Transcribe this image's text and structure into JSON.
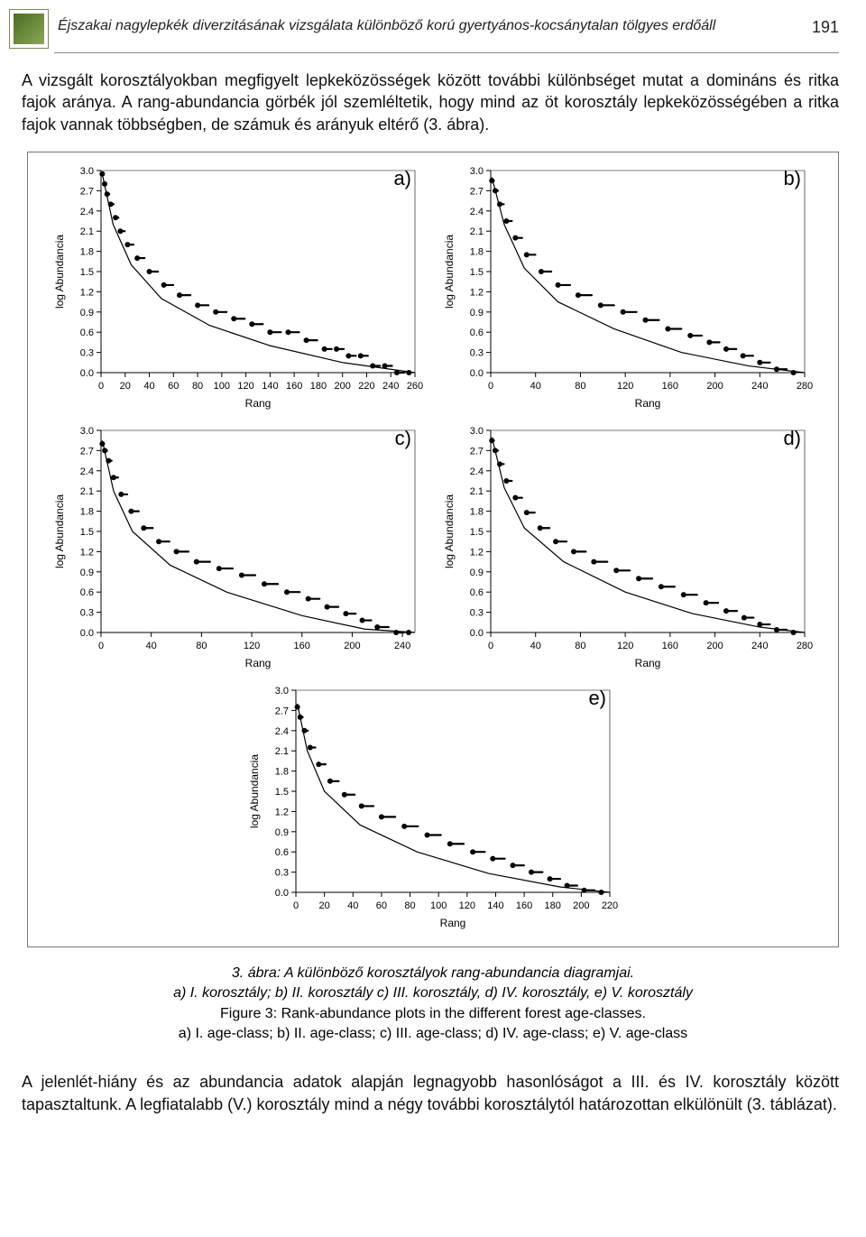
{
  "page_number": "191",
  "running_head": "Éjszakai nagylepkék diverzitásának vizsgálata különböző korú gyertyános-kocsánytalan tölgyes erdőáll",
  "paragraph_top": "A vizsgált korosztályokban megfigyelt lepkeközösségek között további különbséget mutat a domináns és ritka fajok aránya. A rang-abundancia görbék jól szemléltetik, hogy mind az öt korosztály lepkeközösségében a ritka fajok vannak többségben, de számuk és arányuk eltérő (3. ábra).",
  "caption_line1": "3. ábra: A különböző korosztályok rang-abundancia diagramjai.",
  "caption_line2": "a) I. korosztály; b) II. korosztály c) III. korosztály, d) IV. korosztály, e) V. korosztály",
  "caption_line3": "Figure 3: Rank-abundance plots in the different forest age-classes.",
  "caption_line4": "a) I. age-class; b) II. age-class; c) III. age-class; d) IV. age-class; e) V. age-class",
  "paragraph_bottom": "A jelenlét-hiány és az abundancia adatok alapján legnagyobb hasonlóságot a III. és IV. korosztály között tapasztaltunk. A legfiatalabb (V.) korosztály mind a négy további korosztálytól határozottan elkülönült (3. táblázat).",
  "chart_common": {
    "y_label": "log Abundancia",
    "x_label": "Rang",
    "y_ticks": [
      0.0,
      0.3,
      0.6,
      0.9,
      1.2,
      1.5,
      1.8,
      2.1,
      2.4,
      2.7,
      3.0
    ],
    "y_lim": [
      0.0,
      3.0
    ],
    "marker_color": "#000000",
    "line_color": "#000000",
    "background_color": "#ffffff",
    "axis_color": "#000000",
    "tick_font_size": 11,
    "label_font_size": 12,
    "marker_radius": 3,
    "line_width": 1.2
  },
  "panels": {
    "a": {
      "label": "a)",
      "x_ticks": [
        0,
        20,
        40,
        60,
        80,
        100,
        120,
        140,
        160,
        180,
        200,
        220,
        240,
        260
      ],
      "x_lim": [
        0,
        260
      ],
      "curve": [
        [
          1,
          2.95
        ],
        [
          10,
          2.2
        ],
        [
          25,
          1.6
        ],
        [
          50,
          1.1
        ],
        [
          90,
          0.7
        ],
        [
          140,
          0.4
        ],
        [
          200,
          0.15
        ],
        [
          260,
          0.0
        ]
      ],
      "points": [
        [
          1,
          2.95
        ],
        [
          3,
          2.8
        ],
        [
          5,
          2.65
        ],
        [
          8,
          2.5
        ],
        [
          12,
          2.3
        ],
        [
          16,
          2.1
        ],
        [
          22,
          1.9
        ],
        [
          30,
          1.7
        ],
        [
          40,
          1.5
        ],
        [
          52,
          1.3
        ],
        [
          65,
          1.15
        ],
        [
          80,
          1.0
        ],
        [
          95,
          0.9
        ],
        [
          110,
          0.8
        ],
        [
          125,
          0.72
        ],
        [
          140,
          0.6
        ],
        [
          155,
          0.6
        ],
        [
          170,
          0.48
        ],
        [
          185,
          0.35
        ],
        [
          195,
          0.35
        ],
        [
          205,
          0.25
        ],
        [
          215,
          0.25
        ],
        [
          225,
          0.1
        ],
        [
          235,
          0.1
        ],
        [
          245,
          0.0
        ],
        [
          255,
          0.0
        ]
      ]
    },
    "b": {
      "label": "b)",
      "x_ticks": [
        0,
        40,
        80,
        120,
        160,
        200,
        240,
        280
      ],
      "x_lim": [
        0,
        280
      ],
      "curve": [
        [
          1,
          2.9
        ],
        [
          12,
          2.2
        ],
        [
          30,
          1.55
        ],
        [
          60,
          1.05
        ],
        [
          110,
          0.65
        ],
        [
          170,
          0.3
        ],
        [
          230,
          0.1
        ],
        [
          280,
          0.0
        ]
      ],
      "points": [
        [
          1,
          2.85
        ],
        [
          4,
          2.7
        ],
        [
          8,
          2.5
        ],
        [
          14,
          2.25
        ],
        [
          22,
          2.0
        ],
        [
          32,
          1.75
        ],
        [
          45,
          1.5
        ],
        [
          60,
          1.3
        ],
        [
          78,
          1.15
        ],
        [
          98,
          1.0
        ],
        [
          118,
          0.9
        ],
        [
          138,
          0.78
        ],
        [
          158,
          0.65
        ],
        [
          178,
          0.55
        ],
        [
          195,
          0.45
        ],
        [
          210,
          0.35
        ],
        [
          225,
          0.25
        ],
        [
          240,
          0.15
        ],
        [
          255,
          0.05
        ],
        [
          270,
          0.0
        ]
      ]
    },
    "c": {
      "label": "c)",
      "x_ticks": [
        0,
        40,
        80,
        120,
        160,
        200,
        240
      ],
      "x_lim": [
        0,
        250
      ],
      "curve": [
        [
          1,
          2.85
        ],
        [
          10,
          2.1
        ],
        [
          25,
          1.5
        ],
        [
          55,
          1.0
        ],
        [
          100,
          0.6
        ],
        [
          160,
          0.25
        ],
        [
          210,
          0.05
        ],
        [
          250,
          0.0
        ]
      ],
      "points": [
        [
          1,
          2.8
        ],
        [
          3,
          2.7
        ],
        [
          6,
          2.55
        ],
        [
          10,
          2.3
        ],
        [
          16,
          2.05
        ],
        [
          24,
          1.8
        ],
        [
          34,
          1.55
        ],
        [
          46,
          1.35
        ],
        [
          60,
          1.2
        ],
        [
          76,
          1.05
        ],
        [
          94,
          0.95
        ],
        [
          112,
          0.85
        ],
        [
          130,
          0.72
        ],
        [
          148,
          0.6
        ],
        [
          165,
          0.5
        ],
        [
          180,
          0.38
        ],
        [
          195,
          0.28
        ],
        [
          208,
          0.18
        ],
        [
          220,
          0.08
        ],
        [
          235,
          0.0
        ],
        [
          245,
          0.0
        ]
      ]
    },
    "d": {
      "label": "d)",
      "x_ticks": [
        0,
        40,
        80,
        120,
        160,
        200,
        240,
        280
      ],
      "x_lim": [
        0,
        280
      ],
      "curve": [
        [
          1,
          2.9
        ],
        [
          12,
          2.15
        ],
        [
          30,
          1.55
        ],
        [
          65,
          1.05
        ],
        [
          120,
          0.6
        ],
        [
          180,
          0.28
        ],
        [
          240,
          0.08
        ],
        [
          280,
          0.0
        ]
      ],
      "points": [
        [
          1,
          2.85
        ],
        [
          4,
          2.7
        ],
        [
          8,
          2.5
        ],
        [
          14,
          2.25
        ],
        [
          22,
          2.0
        ],
        [
          32,
          1.78
        ],
        [
          44,
          1.55
        ],
        [
          58,
          1.35
        ],
        [
          74,
          1.2
        ],
        [
          92,
          1.05
        ],
        [
          112,
          0.92
        ],
        [
          132,
          0.8
        ],
        [
          152,
          0.68
        ],
        [
          172,
          0.56
        ],
        [
          192,
          0.44
        ],
        [
          210,
          0.32
        ],
        [
          226,
          0.22
        ],
        [
          240,
          0.12
        ],
        [
          255,
          0.04
        ],
        [
          270,
          0.0
        ]
      ]
    },
    "e": {
      "label": "e)",
      "x_ticks": [
        0,
        20,
        40,
        60,
        80,
        100,
        120,
        140,
        160,
        180,
        200,
        220
      ],
      "x_lim": [
        0,
        220
      ],
      "curve": [
        [
          1,
          2.8
        ],
        [
          8,
          2.1
        ],
        [
          20,
          1.5
        ],
        [
          45,
          1.0
        ],
        [
          85,
          0.6
        ],
        [
          135,
          0.28
        ],
        [
          185,
          0.08
        ],
        [
          220,
          0.0
        ]
      ],
      "points": [
        [
          1,
          2.75
        ],
        [
          3,
          2.6
        ],
        [
          6,
          2.4
        ],
        [
          10,
          2.15
        ],
        [
          16,
          1.9
        ],
        [
          24,
          1.65
        ],
        [
          34,
          1.45
        ],
        [
          46,
          1.28
        ],
        [
          60,
          1.12
        ],
        [
          76,
          0.98
        ],
        [
          92,
          0.85
        ],
        [
          108,
          0.72
        ],
        [
          124,
          0.6
        ],
        [
          138,
          0.5
        ],
        [
          152,
          0.4
        ],
        [
          165,
          0.3
        ],
        [
          178,
          0.2
        ],
        [
          190,
          0.1
        ],
        [
          202,
          0.03
        ],
        [
          214,
          0.0
        ]
      ]
    }
  }
}
